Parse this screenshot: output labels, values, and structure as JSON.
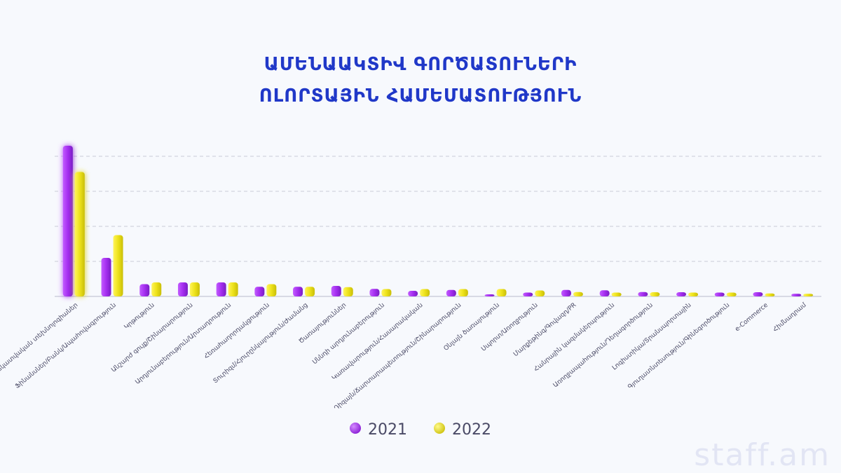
{
  "title_lines": [
    "ԱՄԵՆԱԱԿՏԻՎ ԳՈՐԾԱՏՈՒՆԵՐԻ",
    "ՈԼՈՐՏԱՅԻՆ ՀԱՄԵՄԱՏՈՒԹՅՈՒՆ"
  ],
  "watermark": "staff.am",
  "colors": {
    "series_2021": "#a52ef0",
    "series_2022": "#ede21a",
    "title": "#2038c8"
  },
  "chart_data": {
    "type": "bar",
    "title": "ԱՄԵՆԱԱԿՏԻՎ ԳՈՐԾԱՏՈՒՆԵՐԻ ՈԼՈՐՏԱՅԻՆ ՀԱՄԵՄԱՏՈՒԹՅՈՒՆ",
    "xlabel": "",
    "ylabel": "",
    "ylim": [
      0,
      100
    ],
    "grid": true,
    "legend": "bottom",
    "categories": [
      "Տեղեկատվական տեխնոլոգիաներ",
      "Ֆինանսներ/Բանկ/Ապահովագրություն",
      "Կրթություն",
      "Անշարժ գույք/Շինարարություն",
      "Արդյունաբերություն/Արտադրություն",
      "Հեռահաղորդակցություն",
      "Տուրիզմ/Հյուրընկալություն/Ժամանց",
      "Ծառայություններ",
      "Սննդի արդյունաբերություն",
      "Կառավարություն/Հասարակական",
      "Դիզայն/Ճարտարապետություն/Շինարարություն",
      "Օնլայն ծառայություն",
      "Սպորտ/Առողջություն",
      "Մարքեթինգ/Գովազդ/PR",
      "Հանրային կազմակերպություն",
      "Առողջապահություն/Դեղագործություն",
      "Լոգիստիկա/Տրանսպորտային",
      "Գյուղատնտեսություն/Գինեգործություն",
      "e-Commerce",
      "Հիմնադրամ"
    ],
    "series": [
      {
        "name": "2021",
        "values": [
          86,
          22,
          7,
          8,
          8,
          5.5,
          5.5,
          6,
          4.3,
          3.2,
          3.7,
          1.2,
          2.2,
          3.7,
          3.5,
          2.5,
          2.4,
          2.2,
          2.4,
          1.5
        ]
      },
      {
        "name": "2022",
        "values": [
          71,
          35,
          8,
          8,
          8,
          7,
          5.5,
          5.3,
          4.2,
          4.2,
          4.2,
          4.2,
          3.4,
          2.5,
          2.2,
          2.4,
          2.2,
          2.2,
          1.7,
          1.5
        ]
      }
    ]
  }
}
